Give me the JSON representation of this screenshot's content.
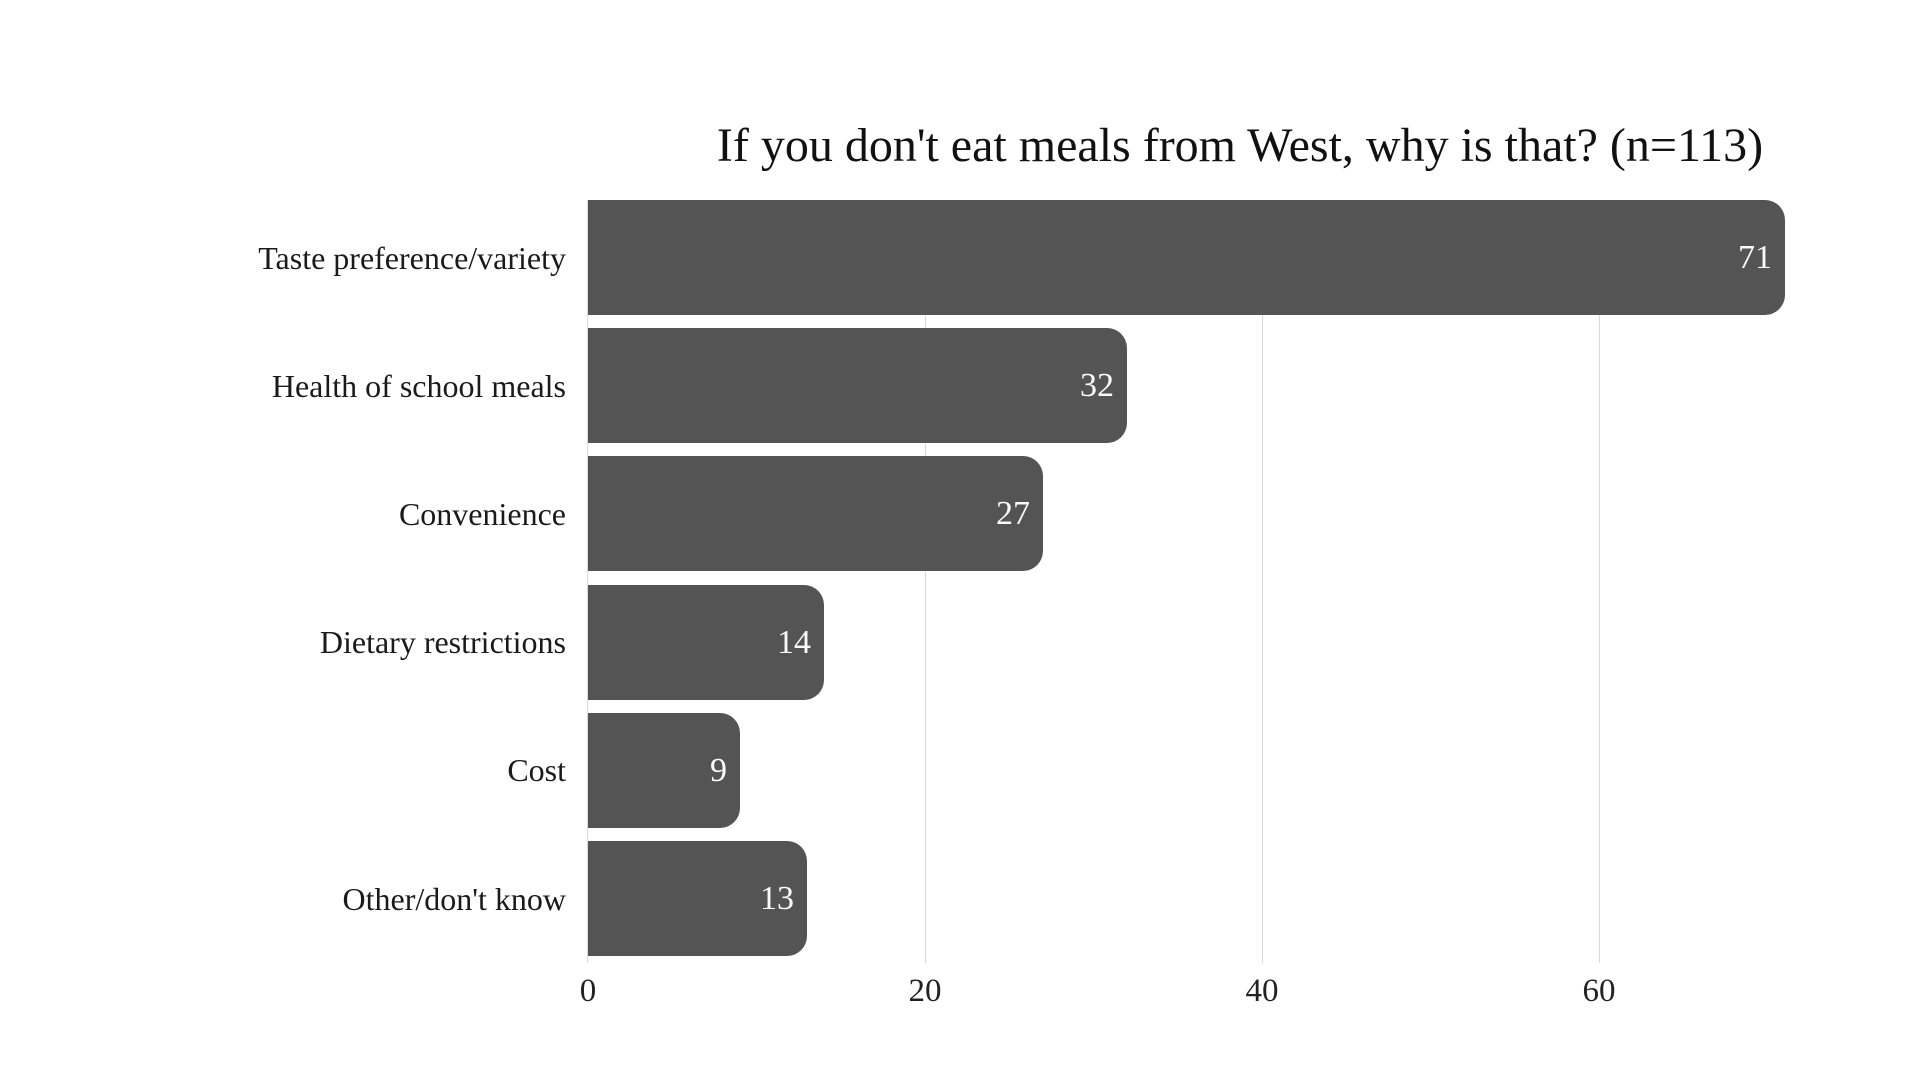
{
  "chart_data": {
    "type": "bar",
    "orientation": "horizontal",
    "title": "If you don't eat meals from West, why is that? (n=113)",
    "categories": [
      "Taste preference/variety",
      "Health of school meals",
      "Convenience",
      "Dietary restrictions",
      "Cost",
      "Other/don't know"
    ],
    "values": [
      71,
      32,
      27,
      14,
      9,
      13
    ],
    "x_ticks": [
      0,
      20,
      40,
      60
    ],
    "xlim": [
      0,
      72.5
    ],
    "grid": "vertical-light",
    "legend": "none",
    "xlabel": "",
    "ylabel": "",
    "colors": {
      "bar": "#545454",
      "value_label": "#fafafa",
      "gridline": "#d9d9d9",
      "axis_line": "#d9d9d9",
      "text": "#1a1a1a",
      "background": "#ffffff"
    }
  }
}
